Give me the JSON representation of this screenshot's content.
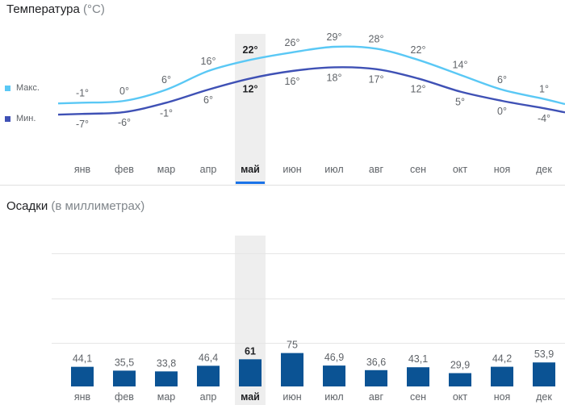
{
  "temperature": {
    "title": "Температура",
    "unit": "(°C)",
    "legend": {
      "max_label": "Макс.",
      "min_label": "Мин."
    },
    "selected_month": "май"
  },
  "precipitation": {
    "title": "Осадки",
    "unit": "(в миллиметрах)"
  },
  "colors": {
    "max_line": "#5ac8f5",
    "min_line": "#3f51b5",
    "bars": "#0b5394",
    "highlight_band": "#eeeeee",
    "selected_underline": "#1a73e8"
  },
  "chart_data": [
    {
      "type": "line",
      "title": "Температура (°C)",
      "categories": [
        "янв",
        "фев",
        "мар",
        "апр",
        "май",
        "июн",
        "июл",
        "авг",
        "сен",
        "окт",
        "ноя",
        "дек"
      ],
      "series": [
        {
          "name": "Макс.",
          "values": [
            -1,
            0,
            6,
            16,
            22,
            26,
            29,
            28,
            22,
            14,
            6,
            1
          ],
          "labels": [
            "-1°",
            "0°",
            "6°",
            "16°",
            "22°",
            "26°",
            "29°",
            "28°",
            "22°",
            "14°",
            "6°",
            "1°"
          ]
        },
        {
          "name": "Мин.",
          "values": [
            -7,
            -6,
            -1,
            6,
            12,
            16,
            18,
            17,
            12,
            5,
            0,
            -4
          ],
          "labels": [
            "-7°",
            "-6°",
            "-1°",
            "6°",
            "12°",
            "16°",
            "18°",
            "17°",
            "12°",
            "5°",
            "0°",
            "-4°"
          ]
        }
      ],
      "highlight": "май",
      "legend": "left"
    },
    {
      "type": "bar",
      "title": "Осадки (в миллиметрах)",
      "categories": [
        "янв",
        "фев",
        "мар",
        "апр",
        "май",
        "июн",
        "июл",
        "авг",
        "сен",
        "окт",
        "ноя",
        "дек"
      ],
      "values": [
        44.1,
        35.5,
        33.8,
        46.4,
        61,
        75,
        46.9,
        36.6,
        43.1,
        29.9,
        44.2,
        53.9
      ],
      "labels": [
        "44,1",
        "35,5",
        "33,8",
        "46,4",
        "61",
        "75",
        "46,9",
        "36,6",
        "43,1",
        "29,9",
        "44,2",
        "53,9"
      ],
      "highlight": "май",
      "grid": true
    }
  ]
}
